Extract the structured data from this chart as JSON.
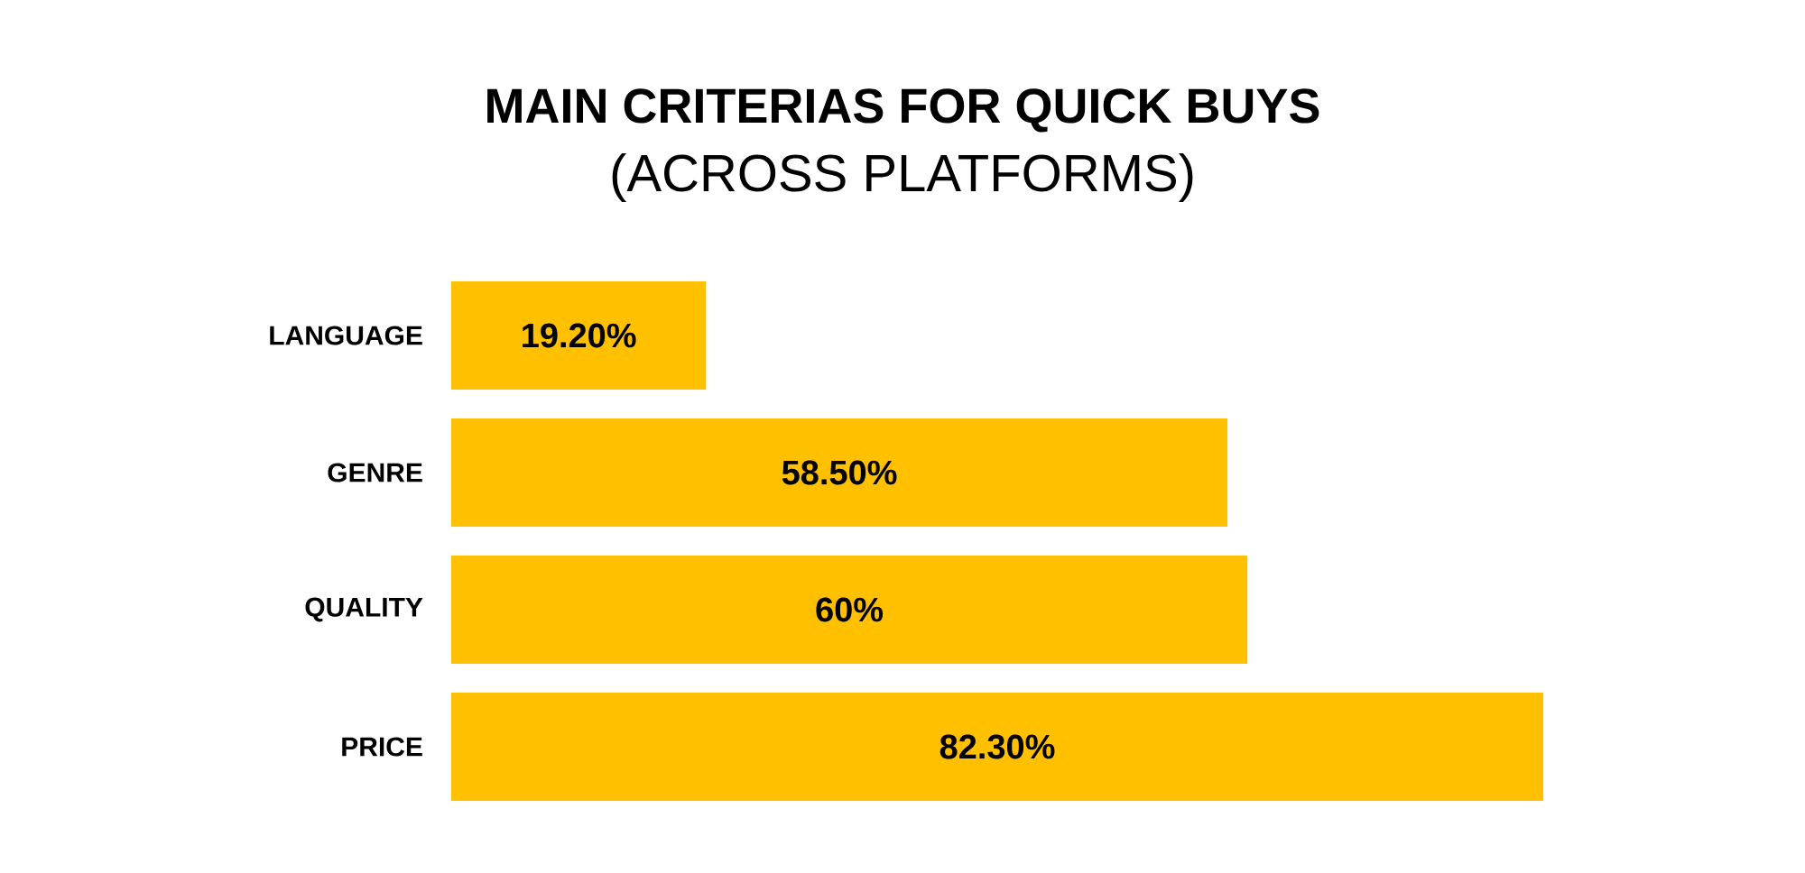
{
  "chart_data": {
    "type": "bar",
    "orientation": "horizontal",
    "title": "MAIN CRITERIAS FOR QUICK BUYS",
    "subtitle": "(ACROSS PLATFORMS)",
    "categories": [
      "LANGUAGE",
      "GENRE",
      "QUALITY",
      "PRICE"
    ],
    "values": [
      19.2,
      58.5,
      60,
      82.3
    ],
    "value_labels": [
      "19.20%",
      "58.50%",
      "60%",
      "82.30%"
    ],
    "color": "#ffc000",
    "tick_labels": "y"
  }
}
